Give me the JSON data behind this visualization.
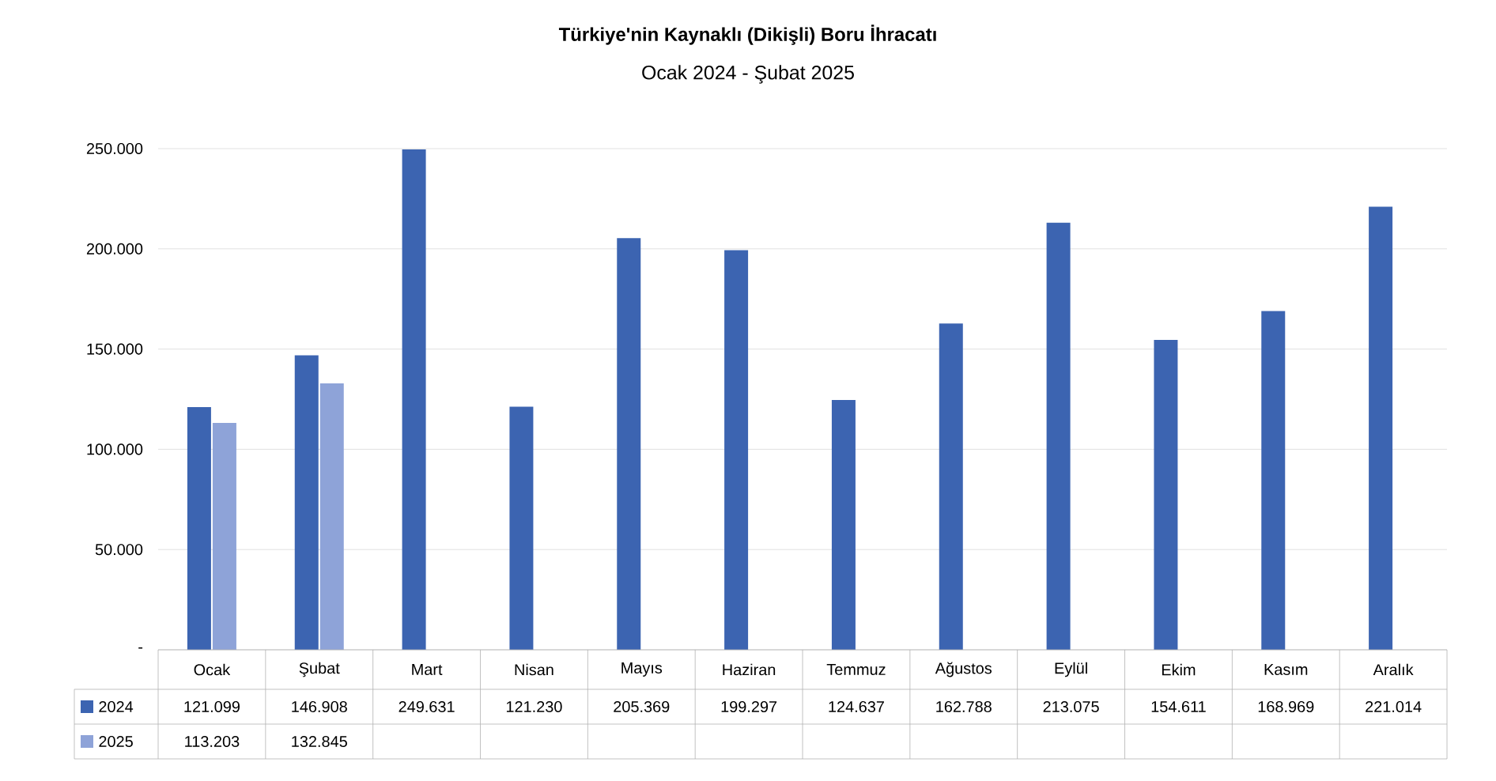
{
  "chart_data": {
    "type": "bar",
    "title": "Türkiye'nin Kaynaklı (Dikişli) Boru İhracatı",
    "subtitle": "Ocak 2024 - Şubat 2025",
    "categories": [
      "Ocak",
      "Şubat",
      "Mart",
      "Nisan",
      "Mayıs",
      "Haziran",
      "Temmuz",
      "Ağustos",
      "Eylül",
      "Ekim",
      "Kasım",
      "Aralık"
    ],
    "series": [
      {
        "name": "2024",
        "color": "#3c64b1",
        "values": [
          121099,
          146908,
          249631,
          121230,
          205369,
          199297,
          124637,
          162788,
          213075,
          154611,
          168969,
          221014
        ],
        "value_labels": [
          "121.099",
          "146.908",
          "249.631",
          "121.230",
          "205.369",
          "199.297",
          "124.637",
          "162.788",
          "213.075",
          "154.611",
          "168.969",
          "221.014"
        ]
      },
      {
        "name": "2025",
        "color": "#8ea3d8",
        "values": [
          113203,
          132845,
          null,
          null,
          null,
          null,
          null,
          null,
          null,
          null,
          null,
          null
        ],
        "value_labels": [
          "113.203",
          "132.845",
          null,
          null,
          null,
          null,
          null,
          null,
          null,
          null,
          null,
          null
        ]
      }
    ],
    "ylim": [
      0,
      250000
    ],
    "yticks": [
      {
        "value": 0,
        "label": "-"
      },
      {
        "value": 50000,
        "label": "50.000"
      },
      {
        "value": 100000,
        "label": "100.000"
      },
      {
        "value": 150000,
        "label": "150.000"
      },
      {
        "value": 200000,
        "label": "200.000"
      },
      {
        "value": 250000,
        "label": "250.000"
      }
    ],
    "grid": "y",
    "legend": "bottom"
  }
}
